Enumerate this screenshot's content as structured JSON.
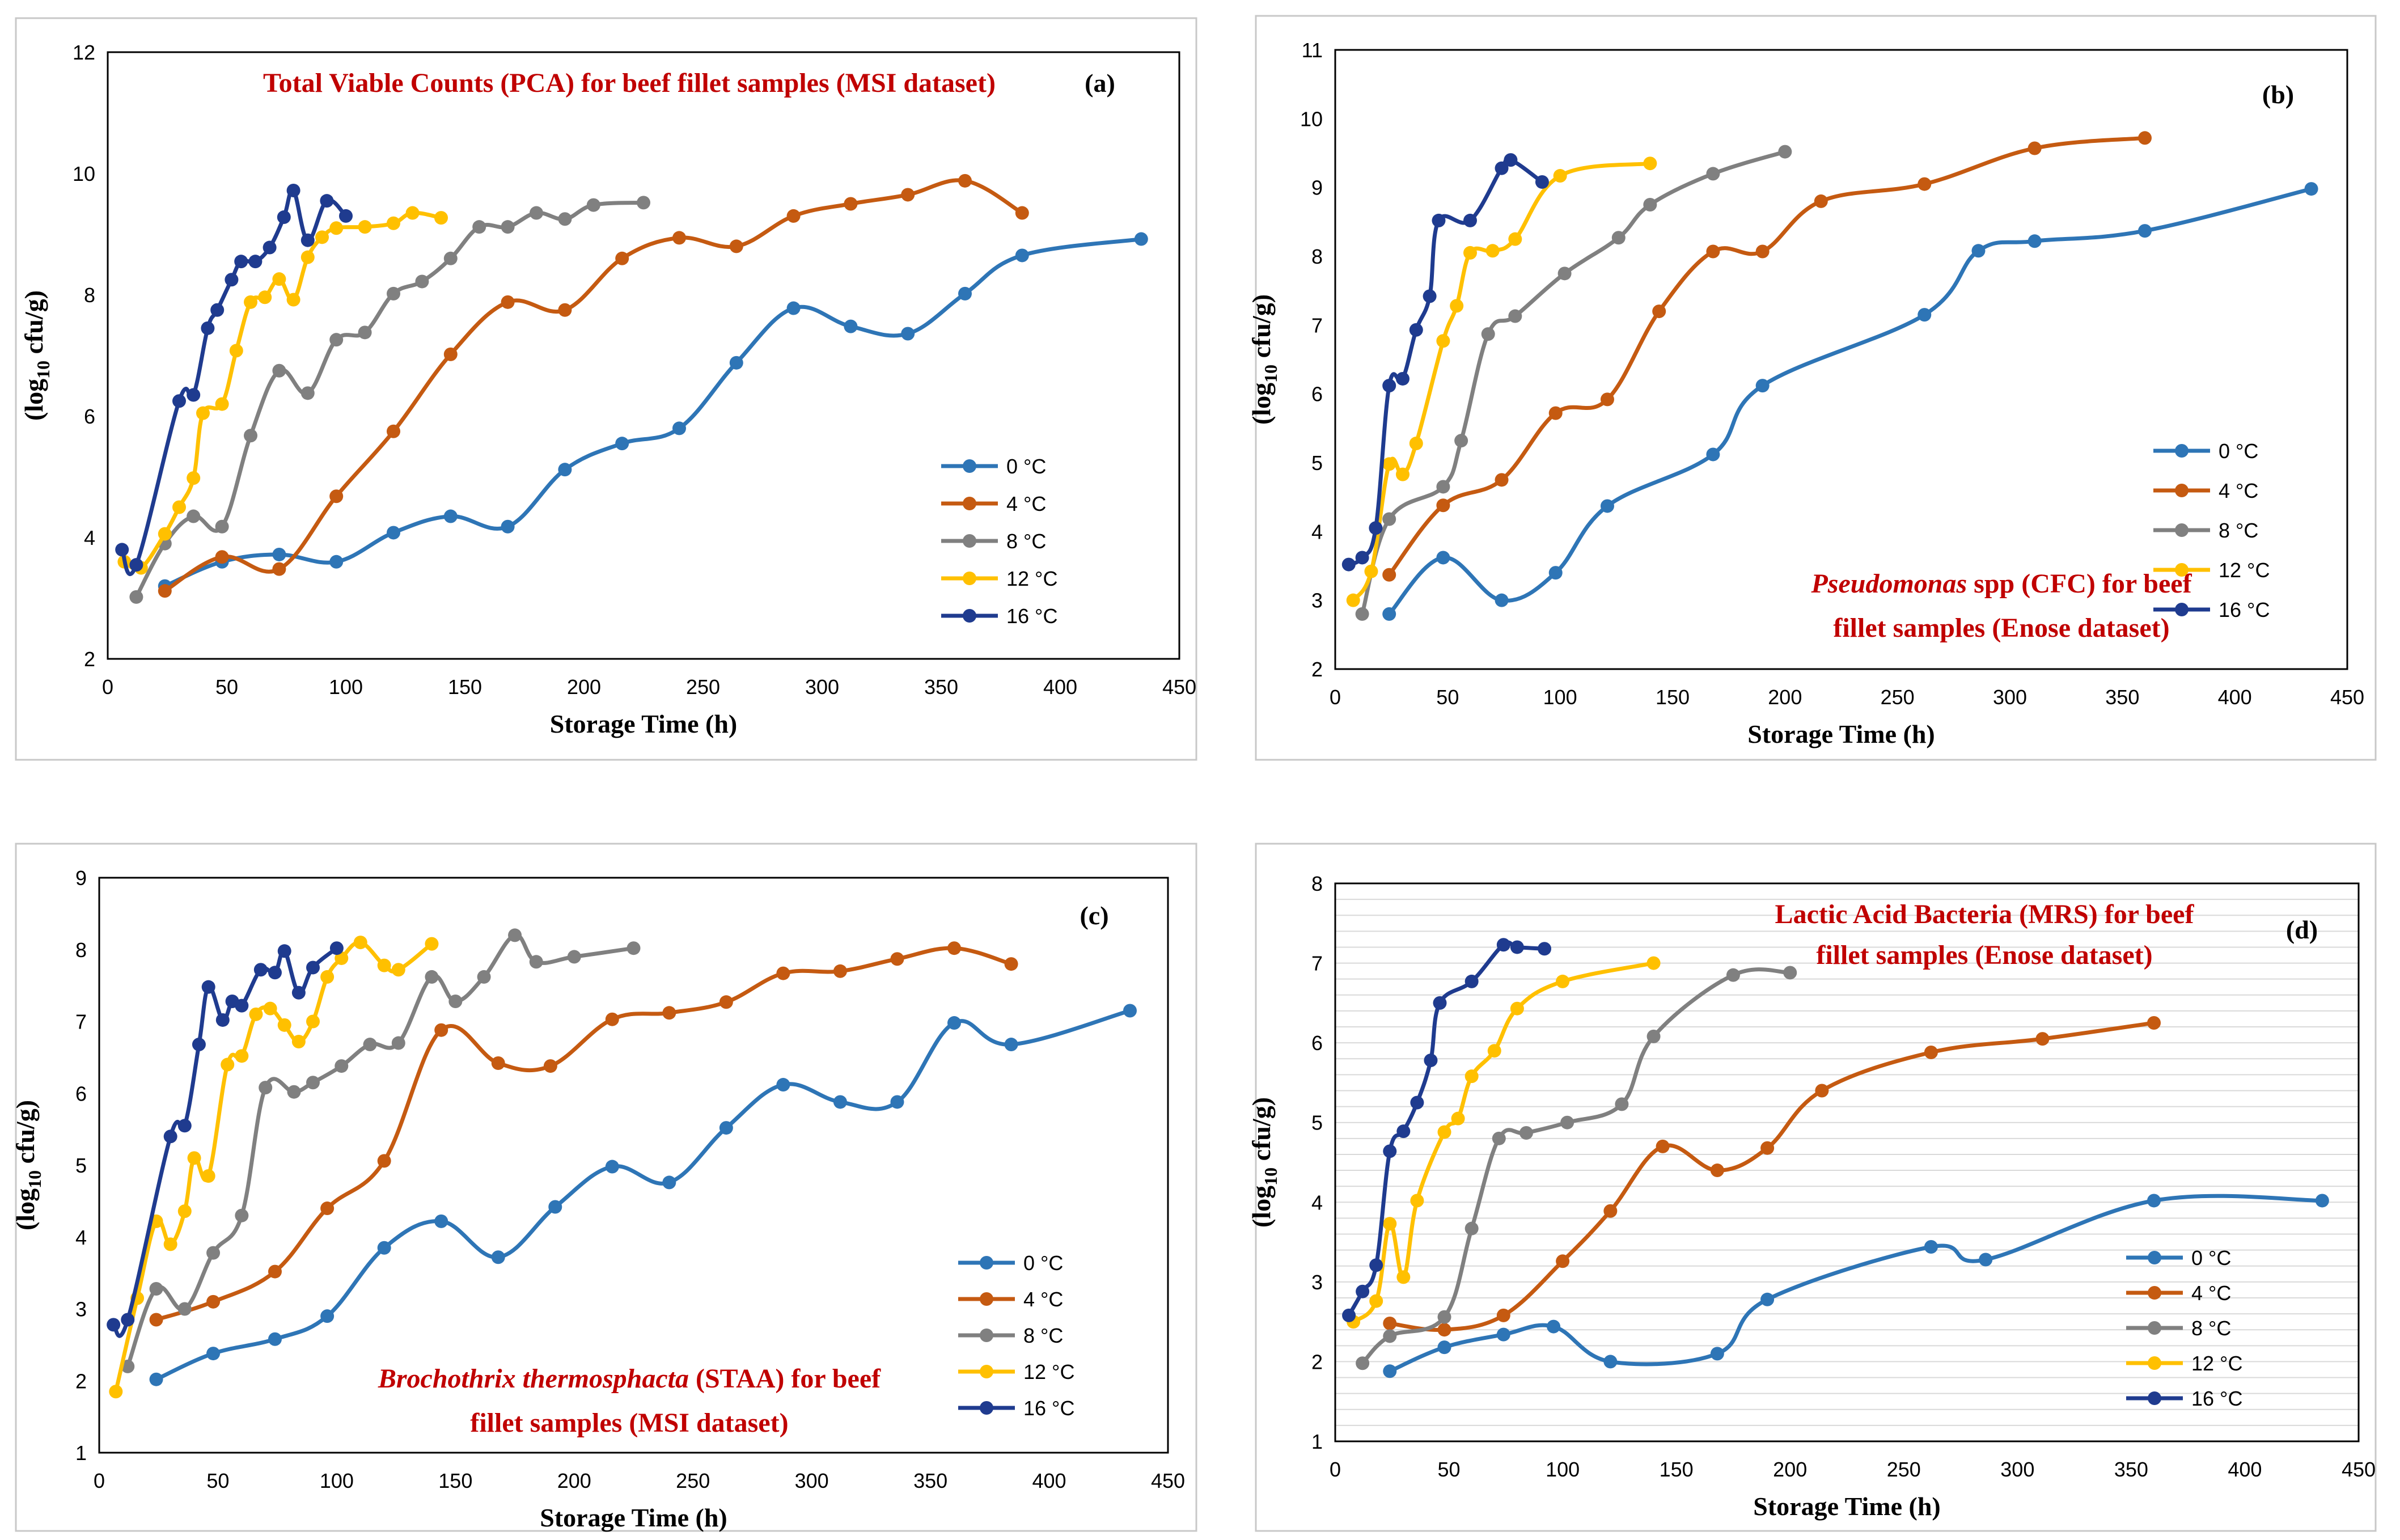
{
  "chart_data": [
    {
      "type": "line",
      "panel_label": "(a)",
      "title": "Total Viable Counts (PCA)  for beef fillet samples (MSI dataset)",
      "title_italic": "",
      "title_lines": [
        "Total Viable Counts (PCA)  for beef fillet samples (MSI dataset)"
      ],
      "xlabel": "Storage Time (h)",
      "ylabel_main": "(log",
      "ylabel_sub": "10",
      "ylabel_end": " cfu/g)",
      "xlim": [
        0,
        450
      ],
      "ylim": [
        2,
        12
      ],
      "xticks": [
        "0",
        "50",
        "100",
        "150",
        "200",
        "250",
        "300",
        "350",
        "400",
        "450"
      ],
      "yticks": [
        "2",
        "4",
        "6",
        "8",
        "10",
        "12"
      ],
      "grid": false,
      "series": [
        {
          "name": "0 °C",
          "color": "#2E75B6",
          "x": [
            24,
            48,
            72,
            96,
            120,
            144,
            168,
            192,
            216,
            240,
            264,
            288,
            312,
            336,
            360,
            384,
            434
          ],
          "y": [
            3.2,
            3.6,
            3.72,
            3.6,
            4.08,
            4.35,
            4.18,
            5.12,
            5.55,
            5.8,
            6.88,
            7.78,
            7.48,
            7.36,
            8.02,
            8.65,
            8.92
          ]
        },
        {
          "name": "4 °C",
          "color": "#C55A11",
          "x": [
            24,
            48,
            72,
            96,
            120,
            144,
            168,
            192,
            216,
            240,
            264,
            288,
            312,
            336,
            360,
            384
          ],
          "y": [
            3.12,
            3.68,
            3.48,
            4.68,
            5.75,
            7.02,
            7.88,
            7.75,
            8.6,
            8.94,
            8.8,
            9.3,
            9.5,
            9.65,
            9.88,
            9.35
          ]
        },
        {
          "name": "8 °C",
          "color": "#808080",
          "x": [
            12,
            24,
            36,
            48,
            60,
            72,
            84,
            96,
            108,
            120,
            132,
            144,
            156,
            168,
            180,
            192,
            204,
            225
          ],
          "y": [
            3.02,
            3.9,
            4.35,
            4.18,
            5.68,
            6.75,
            6.38,
            7.26,
            7.38,
            8.02,
            8.22,
            8.6,
            9.12,
            9.12,
            9.35,
            9.25,
            9.48,
            9.52
          ]
        },
        {
          "name": "12 °C",
          "color": "#FFC000",
          "x": [
            7,
            14,
            24,
            30,
            36,
            40,
            48,
            54,
            60,
            66,
            72,
            78,
            84,
            90,
            96,
            108,
            120,
            128,
            140
          ],
          "y": [
            3.6,
            3.5,
            4.06,
            4.5,
            4.98,
            6.05,
            6.2,
            7.08,
            7.88,
            7.96,
            8.26,
            7.92,
            8.62,
            8.95,
            9.1,
            9.12,
            9.18,
            9.35,
            9.27
          ]
        },
        {
          "name": "16 °C",
          "color": "#1F3B8F",
          "x": [
            6,
            12,
            30,
            36,
            42,
            46,
            52,
            56,
            62,
            68,
            74,
            78,
            84,
            92,
            100
          ],
          "y": [
            3.8,
            3.55,
            6.25,
            6.35,
            7.45,
            7.75,
            8.25,
            8.55,
            8.55,
            8.78,
            9.28,
            9.72,
            8.9,
            9.55,
            9.3
          ]
        }
      ]
    },
    {
      "type": "line",
      "panel_label": "(b)",
      "title": "Pseudomonas spp  (CFC) for beef fillet samples (Enose dataset)",
      "title_italic": "Pseudomonas",
      "title_lines": [
        " spp  (CFC) for beef",
        "fillet samples (Enose dataset)"
      ],
      "xlabel": "Storage Time (h)",
      "ylabel_main": "(log",
      "ylabel_sub": "10",
      "ylabel_end": " cfu/g)",
      "xlim": [
        0,
        450
      ],
      "ylim": [
        2,
        11
      ],
      "xticks": [
        "0",
        "50",
        "100",
        "150",
        "200",
        "250",
        "300",
        "350",
        "400",
        "450"
      ],
      "yticks": [
        "2",
        "3",
        "4",
        "5",
        "6",
        "7",
        "8",
        "9",
        "10",
        "11"
      ],
      "grid": false,
      "series": [
        {
          "name": "0 °C",
          "color": "#2E75B6",
          "x": [
            24,
            48,
            74,
            98,
            121,
            168,
            190,
            262,
            286,
            311,
            360,
            434
          ],
          "y": [
            2.8,
            3.62,
            3.0,
            3.4,
            4.37,
            5.12,
            6.12,
            7.15,
            8.08,
            8.22,
            8.37,
            8.98
          ]
        },
        {
          "name": "4 °C",
          "color": "#C55A11",
          "x": [
            24,
            48,
            74,
            98,
            121,
            144,
            168,
            190,
            216,
            262,
            311,
            360
          ],
          "y": [
            3.37,
            4.38,
            4.75,
            5.72,
            5.92,
            7.2,
            8.07,
            8.07,
            8.8,
            9.05,
            9.57,
            9.72
          ]
        },
        {
          "name": "8 °C",
          "color": "#808080",
          "x": [
            12,
            24,
            48,
            56,
            68,
            80,
            102,
            126,
            140,
            168,
            200
          ],
          "y": [
            2.8,
            4.18,
            4.65,
            5.32,
            6.87,
            7.13,
            7.75,
            8.27,
            8.75,
            9.2,
            9.52
          ]
        },
        {
          "name": "12 °C",
          "color": "#FFC000",
          "x": [
            8,
            16,
            24,
            30,
            36,
            48,
            54,
            60,
            70,
            80,
            100,
            140
          ],
          "y": [
            3.0,
            3.42,
            4.98,
            4.83,
            5.28,
            6.77,
            7.28,
            8.05,
            8.08,
            8.25,
            9.17,
            9.35
          ]
        },
        {
          "name": "16 °C",
          "color": "#1F3B8F",
          "x": [
            6,
            12,
            18,
            24,
            30,
            36,
            42,
            46,
            60,
            74,
            78,
            92
          ],
          "y": [
            3.52,
            3.62,
            4.05,
            6.12,
            6.22,
            6.93,
            7.42,
            8.52,
            8.52,
            9.28,
            9.4,
            9.08
          ]
        }
      ]
    },
    {
      "type": "line",
      "panel_label": "(c)",
      "title": "Brochothrix thermosphacta  (STAA)  for beef fillet samples (MSI dataset)",
      "title_italic": "Brochothrix thermosphacta",
      "title_lines": [
        "  (STAA)  for beef",
        "fillet samples (MSI dataset)"
      ],
      "xlabel": "Storage Time (h)",
      "ylabel_main": "(log",
      "ylabel_sub": "10",
      "ylabel_end": " cfu/g)",
      "xlim": [
        0,
        450
      ],
      "ylim": [
        1,
        9
      ],
      "xticks": [
        "0",
        "50",
        "100",
        "150",
        "200",
        "250",
        "300",
        "350",
        "400",
        "450"
      ],
      "yticks": [
        "1",
        "2",
        "3",
        "4",
        "5",
        "6",
        "7",
        "8",
        "9"
      ],
      "grid": false,
      "series": [
        {
          "name": "0 °C",
          "color": "#2E75B6",
          "x": [
            24,
            48,
            74,
            96,
            120,
            144,
            168,
            192,
            216,
            240,
            264,
            288,
            312,
            336,
            360,
            384,
            434
          ],
          "y": [
            2.02,
            2.38,
            2.58,
            2.9,
            3.85,
            4.22,
            3.72,
            4.42,
            4.98,
            4.76,
            5.52,
            6.12,
            5.88,
            5.88,
            6.98,
            6.68,
            7.15
          ]
        },
        {
          "name": "4 °C",
          "color": "#C55A11",
          "x": [
            24,
            48,
            74,
            96,
            120,
            144,
            168,
            190,
            216,
            240,
            264,
            288,
            312,
            336,
            360,
            384
          ],
          "y": [
            2.85,
            3.1,
            3.52,
            4.4,
            5.06,
            6.88,
            6.42,
            6.38,
            7.03,
            7.12,
            7.27,
            7.67,
            7.7,
            7.87,
            8.02,
            7.8
          ]
        },
        {
          "name": "8 °C",
          "color": "#808080",
          "x": [
            12,
            24,
            36,
            48,
            60,
            70,
            82,
            90,
            102,
            114,
            126,
            140,
            150,
            162,
            175,
            184,
            200,
            225
          ],
          "y": [
            2.2,
            3.28,
            3.0,
            3.78,
            4.3,
            6.08,
            6.02,
            6.15,
            6.38,
            6.68,
            6.7,
            7.62,
            7.28,
            7.62,
            8.2,
            7.83,
            7.9,
            8.02
          ]
        },
        {
          "name": "12 °C",
          "color": "#FFC000",
          "x": [
            7,
            16,
            24,
            30,
            36,
            40,
            46,
            54,
            60,
            66,
            72,
            78,
            84,
            90,
            96,
            102,
            110,
            120,
            126,
            140
          ],
          "y": [
            1.85,
            3.15,
            4.22,
            3.9,
            4.36,
            5.1,
            4.85,
            6.4,
            6.52,
            7.1,
            7.18,
            6.95,
            6.72,
            7.0,
            7.62,
            7.88,
            8.1,
            7.78,
            7.72,
            8.08
          ]
        },
        {
          "name": "16 °C",
          "color": "#1F3B8F",
          "x": [
            6,
            12,
            30,
            36,
            42,
            46,
            52,
            56,
            60,
            68,
            74,
            78,
            84,
            90,
            100
          ],
          "y": [
            2.78,
            2.85,
            5.4,
            5.55,
            6.68,
            7.48,
            7.02,
            7.28,
            7.22,
            7.72,
            7.68,
            7.98,
            7.4,
            7.75,
            8.02
          ]
        }
      ]
    },
    {
      "type": "line",
      "panel_label": "(d)",
      "title": "Lactic Acid Bacteria (MRS) for beef fillet samples (Enose dataset)",
      "title_italic": "",
      "title_lines": [
        "Lactic Acid Bacteria (MRS) for beef",
        "fillet samples (Enose dataset)"
      ],
      "xlabel": "Storage Time (h)",
      "ylabel_main": "(log",
      "ylabel_sub": "10",
      "ylabel_end": " cfu/g)",
      "xlim": [
        0,
        450
      ],
      "ylim": [
        1,
        8
      ],
      "xticks": [
        "0",
        "50",
        "100",
        "150",
        "200",
        "250",
        "300",
        "350",
        "400",
        "450"
      ],
      "yticks": [
        "1",
        "2",
        "3",
        "4",
        "5",
        "6",
        "7",
        "8"
      ],
      "grid": true,
      "series": [
        {
          "name": "0 °C",
          "color": "#2E75B6",
          "x": [
            24,
            48,
            74,
            96,
            121,
            168,
            190,
            262,
            286,
            360,
            434
          ],
          "y": [
            1.88,
            2.18,
            2.34,
            2.44,
            2.0,
            2.1,
            2.78,
            3.44,
            3.28,
            4.02,
            4.02
          ]
        },
        {
          "name": "4 °C",
          "color": "#C55A11",
          "x": [
            24,
            48,
            74,
            100,
            121,
            144,
            168,
            190,
            214,
            262,
            311,
            360
          ],
          "y": [
            2.48,
            2.4,
            2.58,
            3.26,
            3.89,
            4.7,
            4.4,
            4.68,
            5.4,
            5.88,
            6.05,
            6.25
          ]
        },
        {
          "name": "8 °C",
          "color": "#808080",
          "x": [
            12,
            24,
            48,
            60,
            72,
            84,
            102,
            126,
            140,
            175,
            200
          ],
          "y": [
            1.98,
            2.32,
            2.56,
            3.67,
            4.8,
            4.87,
            5.0,
            5.23,
            6.08,
            6.85,
            6.88
          ]
        },
        {
          "name": "12 °C",
          "color": "#FFC000",
          "x": [
            8,
            18,
            24,
            30,
            36,
            48,
            54,
            60,
            70,
            80,
            100,
            140
          ],
          "y": [
            2.5,
            2.76,
            3.73,
            3.06,
            4.02,
            4.88,
            5.05,
            5.58,
            5.9,
            6.43,
            6.77,
            7.0
          ]
        },
        {
          "name": "16 °C",
          "color": "#1F3B8F",
          "x": [
            6,
            12,
            18,
            24,
            30,
            36,
            42,
            46,
            60,
            74,
            80,
            92
          ],
          "y": [
            2.58,
            2.88,
            3.21,
            4.64,
            4.89,
            5.25,
            5.78,
            6.5,
            6.77,
            7.23,
            7.2,
            7.18
          ]
        }
      ]
    }
  ]
}
